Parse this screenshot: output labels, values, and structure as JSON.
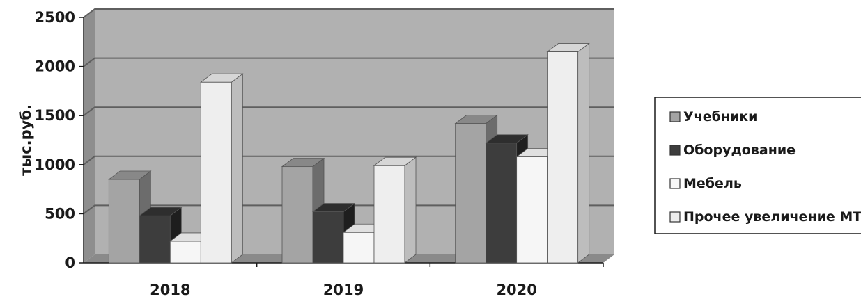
{
  "colors": {
    "wall": "#b1b1b1",
    "side_wall": "#8e8e8e",
    "floor": "#8a8a8a",
    "gridline": "#5f5f5f",
    "axis": "#1a1a1a"
  },
  "chart_data": {
    "type": "bar",
    "categories": [
      "2018",
      "2019",
      "2020"
    ],
    "ylabel": "тыс.руб.",
    "ylim": [
      0,
      2500
    ],
    "yticks": [
      0,
      500,
      1000,
      1500,
      2000,
      2500
    ],
    "grid": true,
    "legend_position": "right",
    "series": [
      {
        "name": "Учебники",
        "values": [
          850,
          980,
          1420
        ],
        "front": "#a4a4a4",
        "side": "#6c6c6c",
        "top": "#888888"
      },
      {
        "name": "Оборудование",
        "values": [
          480,
          520,
          1220
        ],
        "front": "#3d3d3d",
        "side": "#1e1e1e",
        "top": "#2e2e2e"
      },
      {
        "name": "Мебель",
        "values": [
          220,
          310,
          1080
        ],
        "front": "#f6f6f6",
        "side": "#c9c9c9",
        "top": "#e0e0e0"
      },
      {
        "name": "Прочее увеличение МТБ",
        "values": [
          1840,
          990,
          2150
        ],
        "front": "#eeeeee",
        "side": "#bdbdbd",
        "top": "#d6d6d6"
      }
    ]
  }
}
